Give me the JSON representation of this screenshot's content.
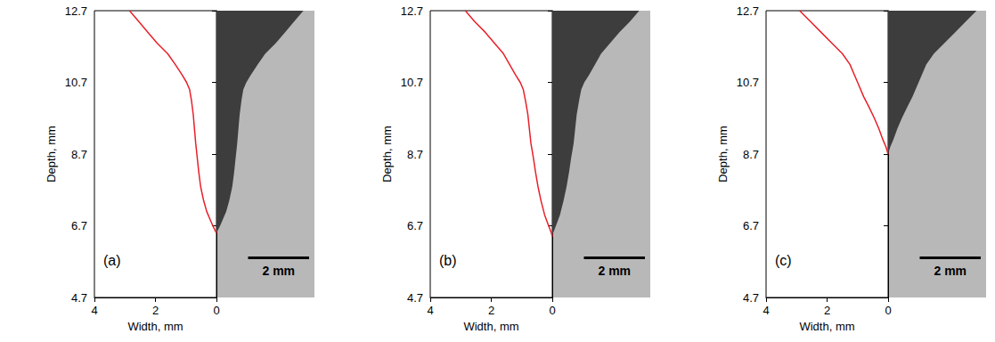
{
  "chart_data": [
    {
      "type": "line",
      "panel_label": "(a)",
      "xlabel": "Width, mm",
      "ylabel": "Depth, mm",
      "xlim": [
        4,
        0
      ],
      "xticks": [
        4,
        2,
        0
      ],
      "ylim": [
        4.7,
        12.7
      ],
      "yticks": [
        4.7,
        6.7,
        8.7,
        10.7,
        12.7
      ],
      "grid": false,
      "color": "#e8202a",
      "x": [
        2.85,
        2.55,
        2.25,
        1.95,
        1.6,
        1.35,
        1.12,
        0.98,
        0.88,
        0.82,
        0.76,
        0.72,
        0.68,
        0.63,
        0.58,
        0.52,
        0.42,
        0.32,
        0.22,
        0.12,
        0.03,
        0
      ],
      "values": [
        12.7,
        12.4,
        12.1,
        11.8,
        11.5,
        11.2,
        10.9,
        10.7,
        10.5,
        10.2,
        9.8,
        9.4,
        9.0,
        8.6,
        8.2,
        7.8,
        7.4,
        7.1,
        6.9,
        6.7,
        6.55,
        6.5
      ],
      "micrograph": {
        "scale_bar_label": "2 mm",
        "scale_bar_length": 2
      }
    },
    {
      "type": "line",
      "panel_label": "(b)",
      "xlabel": "Width, mm",
      "ylabel": "Depth, mm",
      "xlim": [
        4,
        0
      ],
      "xticks": [
        4,
        2,
        0
      ],
      "ylim": [
        4.7,
        12.7
      ],
      "yticks": [
        4.7,
        6.7,
        8.7,
        10.7,
        12.7
      ],
      "grid": false,
      "color": "#e8202a",
      "x": [
        2.85,
        2.55,
        2.2,
        1.9,
        1.6,
        1.4,
        1.2,
        1.05,
        0.95,
        0.88,
        0.8,
        0.75,
        0.7,
        0.62,
        0.55,
        0.47,
        0.37,
        0.25,
        0.12,
        0.03,
        0
      ],
      "values": [
        12.7,
        12.4,
        12.1,
        11.8,
        11.5,
        11.2,
        10.9,
        10.7,
        10.5,
        10.2,
        9.8,
        9.4,
        9.0,
        8.6,
        8.2,
        7.8,
        7.4,
        7.0,
        6.7,
        6.5,
        6.4
      ],
      "micrograph": {
        "scale_bar_label": "2 mm",
        "scale_bar_length": 2
      }
    },
    {
      "type": "line",
      "panel_label": "(c)",
      "xlabel": "Width, mm",
      "ylabel": "Depth, mm",
      "xlim": [
        4,
        0
      ],
      "xticks": [
        4,
        2,
        0
      ],
      "ylim": [
        4.7,
        12.7
      ],
      "yticks": [
        4.7,
        6.7,
        8.7,
        10.7,
        12.7
      ],
      "grid": false,
      "color": "#e8202a",
      "x": [
        2.9,
        2.55,
        2.2,
        1.85,
        1.5,
        1.25,
        1.1,
        0.95,
        0.8,
        0.62,
        0.45,
        0.3,
        0.17,
        0.07,
        0
      ],
      "values": [
        12.7,
        12.4,
        12.1,
        11.8,
        11.5,
        11.2,
        10.9,
        10.6,
        10.3,
        10.0,
        9.7,
        9.4,
        9.1,
        8.9,
        8.7
      ],
      "micrograph": {
        "scale_bar_label": "2 mm",
        "scale_bar_length": 2
      }
    }
  ]
}
